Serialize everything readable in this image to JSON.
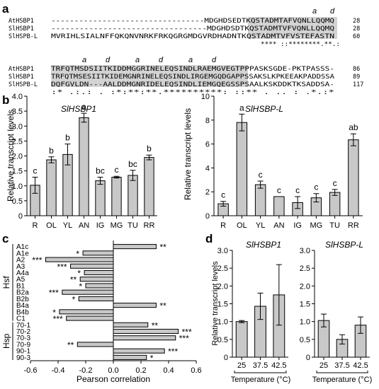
{
  "panel_labels": {
    "a": "a",
    "b": "b",
    "c": "c",
    "d": "d"
  },
  "alignment": {
    "block1": {
      "markers": [
        "a",
        "d"
      ],
      "rows": [
        {
          "name": "AtHSBP1",
          "seq": "---------------------------------MDGHDSEDTKQSTADMTAFVQNLLQQMQ",
          "end": "28"
        },
        {
          "name": "SlHSBP1",
          "seq": "---------------------------------MDGHDSDTKQSTADMTVFVQNLLQQMQ",
          "end": "28"
        },
        {
          "name": "SlHSPB-L",
          "seq": "MVRIHLSIALNFFQKQNVNRKFRKQGRGMDGVRDHADNTKQSTADMTVFVSTEFASTN",
          "end": "60"
        }
      ],
      "consensus": "**** ::********.**.:"
    },
    "block2": {
      "markers": [
        "a",
        "d",
        "a",
        "d",
        "a",
        "d"
      ],
      "rows": [
        {
          "name": "AtHSBP1",
          "seq": "TRFQTMSDSIITKIDDMGGRINELEQSINDLRAEMGVEGTPPPASKSGDE-PKTPASSS-",
          "end": "86"
        },
        {
          "name": "SlHSBP1",
          "seq": "TRFQTMSESIITKIDEMGNRINELEQSINDLIRGEMGQDGAPPSSAKSLKPKEEAKPADDSSA",
          "end": "89"
        },
        {
          "name": "SlHSPB-L",
          "seq": "DQFGVLDN---AALDDMGNRIDELEQSINDLIEMGQEGSSPSAALKSKDDKTKSADDSA-",
          "end": "117"
        }
      ],
      "consensus": ":*  .:.:   .  :*:**:**.**********:  ::**   .  ..      : .*.:*"
    },
    "colors": {
      "highlight": "#d3d3d3"
    }
  },
  "chart_data": [
    {
      "type": "bar",
      "panel": "b-left",
      "title": "SlHSBP1",
      "ylabel": "Relative transcript levels",
      "categories": [
        "R",
        "OL",
        "YL",
        "AN",
        "IG",
        "MG",
        "TU",
        "RR"
      ],
      "values": [
        1.02,
        1.87,
        2.05,
        3.28,
        1.17,
        1.29,
        1.35,
        1.95
      ],
      "errors": [
        0.27,
        0.1,
        0.35,
        0.15,
        0.12,
        0.03,
        0.17,
        0.08
      ],
      "letters": [
        "c",
        "b",
        "b",
        "a",
        "bc",
        "c",
        "bc",
        "b"
      ],
      "ylim": [
        0,
        4
      ],
      "yticks": [
        "0",
        "0.5",
        "1.0",
        "1.5",
        "2.0",
        "2.5",
        "3.0",
        "3.5",
        "4.0"
      ],
      "ytick_values": [
        0,
        0.5,
        1,
        1.5,
        2,
        2.5,
        3,
        3.5,
        4
      ]
    },
    {
      "type": "bar",
      "panel": "b-right",
      "title": "SlHSBP-L",
      "ylabel": "Relative transcript levels",
      "categories": [
        "R",
        "OL",
        "YL",
        "AN",
        "IG",
        "MG",
        "TU",
        "RR"
      ],
      "values": [
        1.0,
        7.8,
        2.6,
        1.6,
        1.1,
        1.5,
        1.95,
        6.35
      ],
      "errors": [
        0.2,
        0.7,
        0.3,
        0.0,
        0.5,
        0.35,
        0.25,
        0.5
      ],
      "letters": [
        "c",
        "a",
        "c",
        "c",
        "c",
        "c",
        "c",
        "ab"
      ],
      "ylim": [
        0,
        10
      ],
      "yticks": [
        "0",
        "2",
        "4",
        "6",
        "8",
        "10"
      ],
      "ytick_values": [
        0,
        2,
        4,
        6,
        8,
        10
      ]
    },
    {
      "type": "bar",
      "panel": "c",
      "orientation": "horizontal",
      "xlabel": "Pearson correlation",
      "groups": [
        {
          "name": "Hsf",
          "count": 12
        },
        {
          "name": "Hsp",
          "count": 6
        }
      ],
      "categories": [
        "A1c",
        "A1e",
        "A2",
        "A3",
        "A4a",
        "A5",
        "B1",
        "B2a",
        "B2b",
        "B4a",
        "B4b",
        "C1",
        "70-1",
        "70-2",
        "70-3",
        "70-9",
        "90-1",
        "90-3"
      ],
      "values": [
        0.31,
        -0.22,
        -0.49,
        -0.31,
        -0.21,
        -0.24,
        -0.2,
        -0.37,
        -0.25,
        0.31,
        -0.39,
        -0.34,
        0.25,
        0.47,
        0.45,
        -0.26,
        0.37,
        0.24
      ],
      "stars": [
        "**",
        "*",
        "***",
        "***",
        "*",
        "**",
        "*",
        "***",
        "*",
        "**",
        "*",
        "***",
        "**",
        "***",
        "***",
        "**",
        "***",
        "*"
      ],
      "xlim": [
        -0.6,
        0.6
      ],
      "xticks": [
        "-0.6",
        "-0.4",
        "-0.2",
        "0.0",
        "0.2",
        "0.4",
        "0.6"
      ],
      "xtick_values": [
        -0.6,
        -0.4,
        -0.2,
        0,
        0.2,
        0.4,
        0.6
      ]
    },
    {
      "type": "bar",
      "panel": "d-left",
      "title": "SlHSBP1",
      "ylabel": "Relative transcript levels",
      "xlabel": "Temperature (°C)",
      "categories": [
        "25",
        "37.5",
        "42.5"
      ],
      "values": [
        1.0,
        1.43,
        1.75
      ],
      "errors": [
        0.03,
        0.37,
        0.85
      ],
      "ylim": [
        0,
        3
      ],
      "yticks": [
        "0",
        "0.5",
        "1.0",
        "1.5",
        "2.0",
        "2.5",
        "3.0"
      ],
      "ytick_values": [
        0,
        0.5,
        1,
        1.5,
        2,
        2.5,
        3
      ]
    },
    {
      "type": "bar",
      "panel": "d-right",
      "title": "SlHSBP-L",
      "xlabel": "Temperature (°C)",
      "categories": [
        "25",
        "37.5",
        "42.5"
      ],
      "values": [
        1.03,
        0.5,
        0.9
      ],
      "errors": [
        0.18,
        0.13,
        0.23
      ],
      "ylim": [
        0,
        3
      ],
      "yticks": [
        "0",
        "0.5",
        "1.0",
        "1.5",
        "2.0",
        "2.5",
        "3.0"
      ],
      "ytick_values": [
        0,
        0.5,
        1,
        1.5,
        2,
        2.5,
        3
      ]
    }
  ],
  "colors": {
    "bar": "#c8c8c8",
    "stroke": "#000000"
  }
}
